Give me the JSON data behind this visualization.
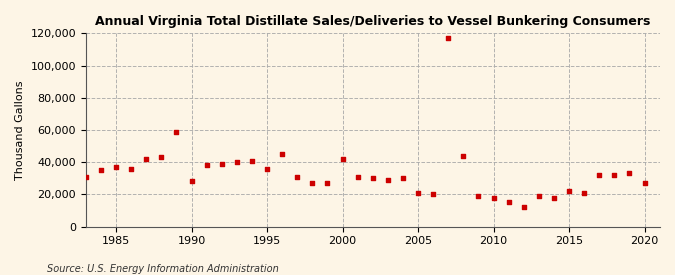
{
  "title": "Annual Virginia Total Distillate Sales/Deliveries to Vessel Bunkering Consumers",
  "ylabel": "Thousand Gallons",
  "source": "Source: U.S. Energy Information Administration",
  "background_color": "#fdf5e6",
  "marker_color": "#cc0000",
  "grid_color": "#aaaaaa",
  "xlim": [
    1983,
    2021
  ],
  "ylim": [
    0,
    120000
  ],
  "yticks": [
    0,
    20000,
    40000,
    60000,
    80000,
    100000,
    120000
  ],
  "xticks": [
    1985,
    1990,
    1995,
    2000,
    2005,
    2010,
    2015,
    2020
  ],
  "years": [
    1983,
    1984,
    1985,
    1986,
    1987,
    1988,
    1989,
    1990,
    1991,
    1992,
    1993,
    1994,
    1995,
    1996,
    1997,
    1998,
    1999,
    2000,
    2001,
    2002,
    2003,
    2004,
    2005,
    2006,
    2007,
    2008,
    2009,
    2010,
    2011,
    2012,
    2013,
    2014,
    2015,
    2016,
    2017,
    2018,
    2019,
    2020
  ],
  "values": [
    31000,
    35000,
    37000,
    36000,
    42000,
    43000,
    59000,
    28000,
    38000,
    39000,
    40000,
    41000,
    36000,
    45000,
    31000,
    27000,
    27000,
    42000,
    31000,
    30000,
    29000,
    30000,
    21000,
    20000,
    117000,
    44000,
    19000,
    18000,
    15000,
    12000,
    19000,
    18000,
    22000,
    21000,
    32000,
    32000,
    33000,
    27000
  ]
}
